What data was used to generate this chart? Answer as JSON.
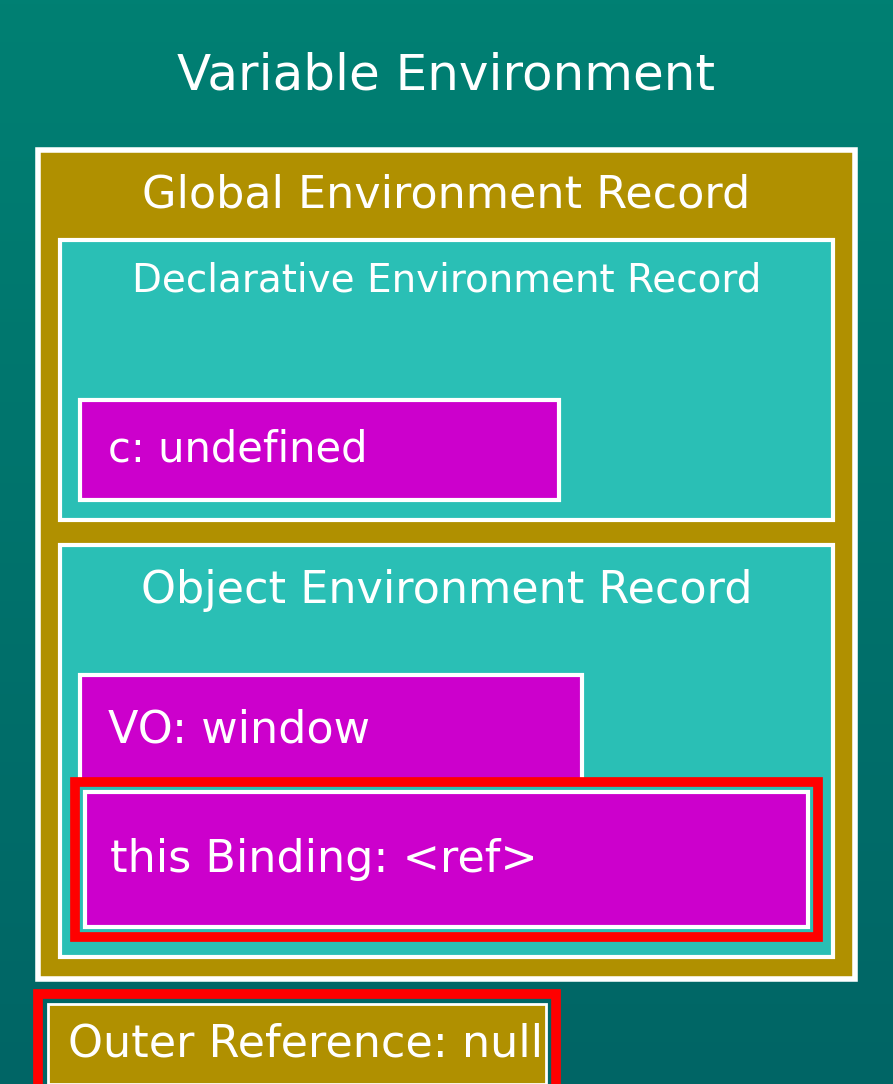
{
  "title": "Variable Environment",
  "title_color": "#ffffff",
  "title_fontsize": 36,
  "bg_gradient_top": "#006666",
  "bg_gradient_bottom": "#004455",
  "outer_box": {
    "label": "Global Environment Record",
    "bg_color": "#b09000",
    "border_color": "#ffffff",
    "fontsize": 32
  },
  "decl_box": {
    "label": "Declarative Environment Record",
    "bg_color": "#2abfb5",
    "border_color": "#ffffff",
    "fontsize": 28
  },
  "c_undefined_box": {
    "label": "c: undefined",
    "bg_color": "#cc00cc",
    "border_color": "#ffffff",
    "fontsize": 30
  },
  "obj_box": {
    "label": "Object Environment Record",
    "bg_color": "#2abfb5",
    "border_color": "#ffffff",
    "fontsize": 32
  },
  "vo_window_box": {
    "label": "VO: window",
    "bg_color": "#cc00cc",
    "border_color": "#ffffff",
    "fontsize": 32
  },
  "this_binding_box": {
    "label": "this Binding: <ref>",
    "bg_color": "#cc00cc",
    "red_border": "#ff0000",
    "white_border": "#ffffff",
    "fontsize": 32
  },
  "outer_ref_box": {
    "label": "Outer Reference: null",
    "bg_color": "#b09000",
    "red_border": "#ff0000",
    "white_border": "#ffffff",
    "fontsize": 32
  },
  "text_color": "#ffffff"
}
